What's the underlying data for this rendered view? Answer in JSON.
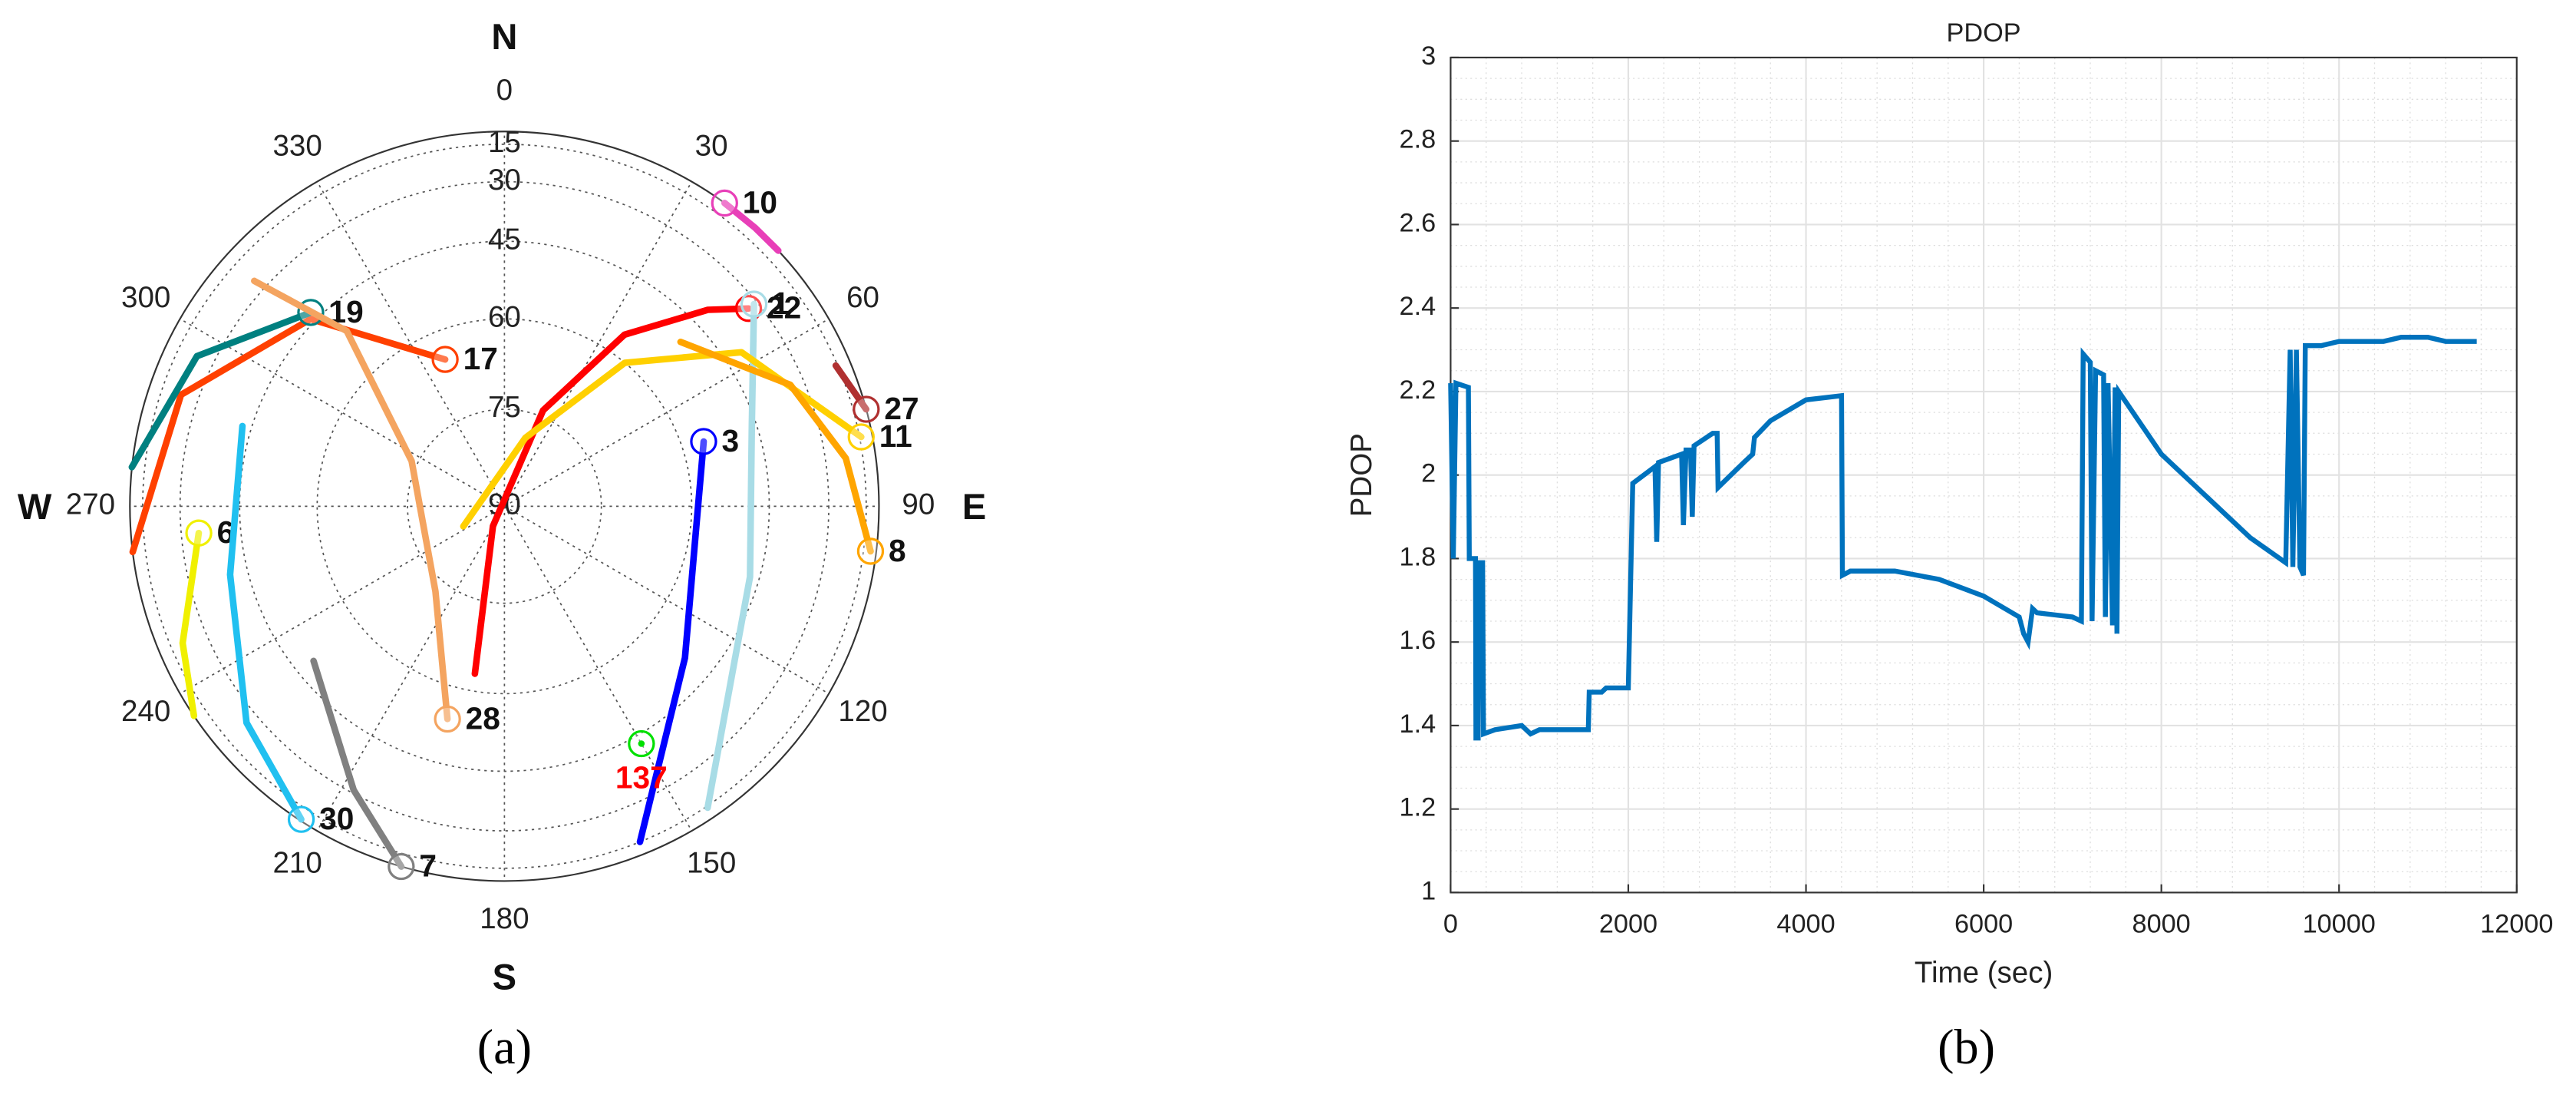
{
  "chart_data": [
    {
      "type": "skyplot",
      "compass": [
        "N",
        "E",
        "S",
        "W"
      ],
      "thetaticks": [
        0,
        30,
        60,
        90,
        120,
        150,
        180,
        210,
        240,
        270,
        300,
        330
      ],
      "rlim": [
        0,
        90
      ],
      "rticks": [
        15,
        30,
        45,
        60,
        75,
        90
      ],
      "grid": true,
      "caption": "(a)",
      "series": [
        {
          "name": "10",
          "color": "#e83fb8",
          "az": [
            47,
            42,
            36
          ],
          "el": [
            0,
            0,
            0
          ]
        },
        {
          "name": "22",
          "color": "#ff0000",
          "az": [
            190,
            210,
            22,
            35,
            46,
            51
          ],
          "el": [
            63,
            86.5,
            74,
            56,
            41,
            33
          ]
        },
        {
          "name": "1",
          "color": "#a8dce6",
          "az": [
            146,
            106,
            72,
            51
          ],
          "el": [
            14,
            47,
            46,
            31
          ]
        },
        {
          "name": "3",
          "color": "#0000ff",
          "az": [
            158,
            130,
            96,
            72
          ],
          "el": [
            15,
            51,
            59,
            56
          ]
        },
        {
          "name": "27",
          "color": "#b03030",
          "az": [
            67,
            75
          ],
          "el": [
            16,
            0
          ]
        },
        {
          "name": "11",
          "color": "#ffd000",
          "az": [
            244,
            17,
            40,
            57,
            79
          ],
          "el": [
            83,
            79,
            60,
            41,
            14
          ]
        },
        {
          "name": "8",
          "color": "#ffa500",
          "az": [
            47,
            67,
            82,
            97
          ],
          "el": [
            50,
            34,
            23,
            10
          ]
        },
        {
          "name": "17",
          "color": "#ff4000",
          "az": [
            263,
            289,
            314,
            338
          ],
          "el": [
            0,
            24,
            44,
            65
          ]
        },
        {
          "name": "19",
          "color": "#008080",
          "az": [
            276,
            296,
            315
          ],
          "el": [
            0,
            24,
            43
          ]
        },
        {
          "name": "28",
          "color": "#f4a460",
          "az": [
            312,
            318,
            296,
            219,
            195
          ],
          "el": [
            26,
            51,
            74,
            73,
            54
          ]
        },
        {
          "name": "6",
          "color": "#f0f000",
          "az": [
            236,
            247,
            265
          ],
          "el": [
            0,
            21,
            35
          ]
        },
        {
          "name": "30",
          "color": "#20c0f0",
          "az": [
            287,
            256,
            230,
            213
          ],
          "el": [
            43,
            41,
            26,
            5
          ]
        },
        {
          "name": "7",
          "color": "#808080",
          "az": [
            231,
            208,
            196
          ],
          "el": [
            49,
            31,
            0
          ]
        },
        {
          "name": "137",
          "color": "#00e000",
          "label_color": "#ff0000",
          "az": [
            150
          ],
          "el": [
            43
          ]
        }
      ]
    },
    {
      "type": "line",
      "title": "PDOP",
      "xlabel": "Time (sec)",
      "ylabel": "PDOP",
      "color": "#0072bd",
      "grid": true,
      "minor_grid": true,
      "caption": "(b)",
      "xlim": [
        0,
        12000
      ],
      "xticks": [
        0,
        2000,
        4000,
        6000,
        8000,
        10000,
        12000
      ],
      "ylim": [
        1,
        3
      ],
      "yticks": [
        1,
        1.2,
        1.4,
        1.6,
        1.8,
        2,
        2.2,
        2.4,
        2.6,
        2.8,
        3
      ],
      "x": [
        0,
        30,
        60,
        200,
        210,
        280,
        285,
        310,
        320,
        360,
        370,
        500,
        800,
        900,
        1000,
        1550,
        1560,
        1700,
        1750,
        2000,
        2050,
        2300,
        2320,
        2340,
        2600,
        2620,
        2650,
        2700,
        2720,
        2740,
        2950,
        3000,
        3010,
        3300,
        3400,
        3420,
        3600,
        4000,
        4400,
        4410,
        4500,
        5000,
        5500,
        6000,
        6400,
        6450,
        6500,
        6550,
        6600,
        7000,
        7100,
        7120,
        7200,
        7220,
        7260,
        7350,
        7370,
        7400,
        7450,
        7480,
        7500,
        7520,
        8000,
        8500,
        9000,
        9400,
        9450,
        9480,
        9520,
        9560,
        9600,
        9620,
        9800,
        10000,
        10500,
        10700,
        11000,
        11200,
        11550
      ],
      "values": [
        2.22,
        1.8,
        2.22,
        2.21,
        1.8,
        1.8,
        1.37,
        1.37,
        1.79,
        1.79,
        1.38,
        1.39,
        1.4,
        1.38,
        1.39,
        1.39,
        1.48,
        1.48,
        1.49,
        1.49,
        1.98,
        2.02,
        1.84,
        2.03,
        2.05,
        1.88,
        2.06,
        2.06,
        1.9,
        2.07,
        2.1,
        2.1,
        1.97,
        2.03,
        2.05,
        2.09,
        2.13,
        2.18,
        2.19,
        1.76,
        1.77,
        1.77,
        1.75,
        1.71,
        1.66,
        1.62,
        1.6,
        1.68,
        1.67,
        1.66,
        1.65,
        2.29,
        2.27,
        1.65,
        2.25,
        2.24,
        1.66,
        2.22,
        1.64,
        2.21,
        1.62,
        2.2,
        2.05,
        1.95,
        1.85,
        1.79,
        2.3,
        1.78,
        2.3,
        1.78,
        1.76,
        2.31,
        2.31,
        2.32,
        2.32,
        2.33,
        2.33,
        2.32,
        2.32
      ]
    }
  ]
}
